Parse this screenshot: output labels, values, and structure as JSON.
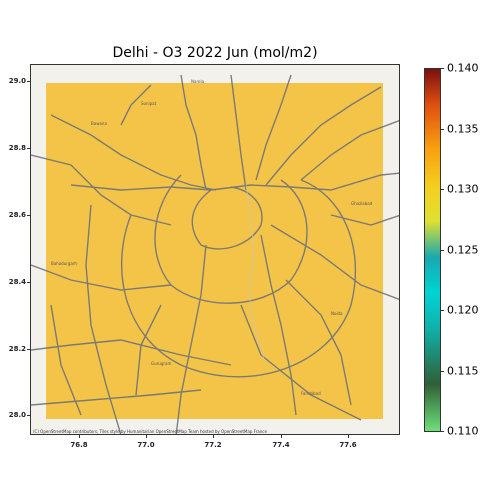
{
  "title": "Delhi - O3 2022 Jun (mol/m2)",
  "attribution": "(C) OpenStreetMap contributors, Tiles style by Humanitarian OpenStreetMap Team hosted by OpenStreetMap France",
  "y_ticks": [
    "29.0",
    "28.8",
    "28.6",
    "28.4",
    "28.2",
    "28.0"
  ],
  "x_ticks": [
    "76.8",
    "77.0",
    "77.2",
    "77.4",
    "77.6"
  ],
  "colorbar": {
    "ticks": [
      "0.140",
      "0.135",
      "0.130",
      "0.125",
      "0.120",
      "0.115",
      "0.110"
    ],
    "min": 0.11,
    "max": 0.14
  },
  "overlay_color": "#f5c542",
  "map_places": [
    "Narela",
    "Bawana",
    "Ghaziabad",
    "Noida",
    "Gurugram",
    "Faridabad",
    "Bahadurgarh",
    "Sonipat"
  ]
}
